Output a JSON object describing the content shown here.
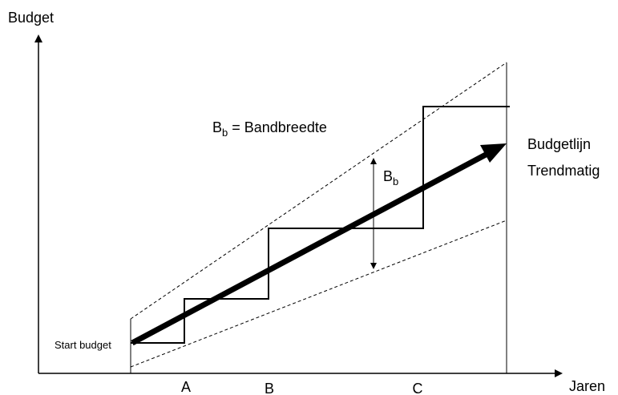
{
  "axes": {
    "y_label": "Budget",
    "x_label": "Jaren"
  },
  "x_marks": [
    "A",
    "B",
    "C"
  ],
  "start_label": "Start budget",
  "legend": {
    "symbol": "B",
    "subscript": "b",
    "text": "= Bandbreedte"
  },
  "band_label": {
    "symbol": "B",
    "subscript": "b"
  },
  "trend_label": [
    "Budgetlijn",
    "Trendmatig"
  ]
}
